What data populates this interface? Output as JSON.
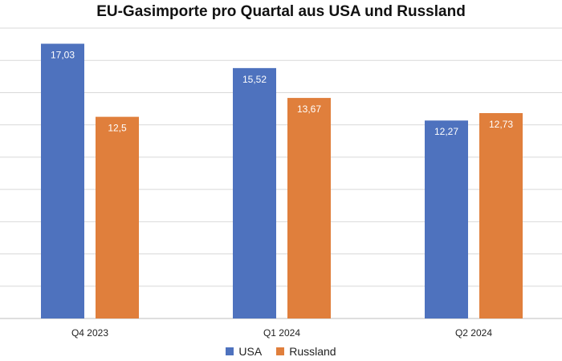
{
  "chart_data": {
    "type": "bar",
    "title": "EU-Gasimporte pro Quartal aus USA und Russland",
    "categories": [
      "Q4 2023",
      "Q1 2024",
      "Q2 2024"
    ],
    "series": [
      {
        "name": "USA",
        "values": [
          17.03,
          15.52,
          12.27
        ],
        "labels": [
          "17,03",
          "15,52",
          "12,27"
        ],
        "color": "#4e72be"
      },
      {
        "name": "Russland",
        "values": [
          12.5,
          13.67,
          12.73
        ],
        "labels": [
          "12,5",
          "13,67",
          "12,73"
        ],
        "color": "#e07f3c"
      }
    ],
    "ylim": [
      0,
      18
    ],
    "grid": true,
    "legend_position": "bottom"
  }
}
